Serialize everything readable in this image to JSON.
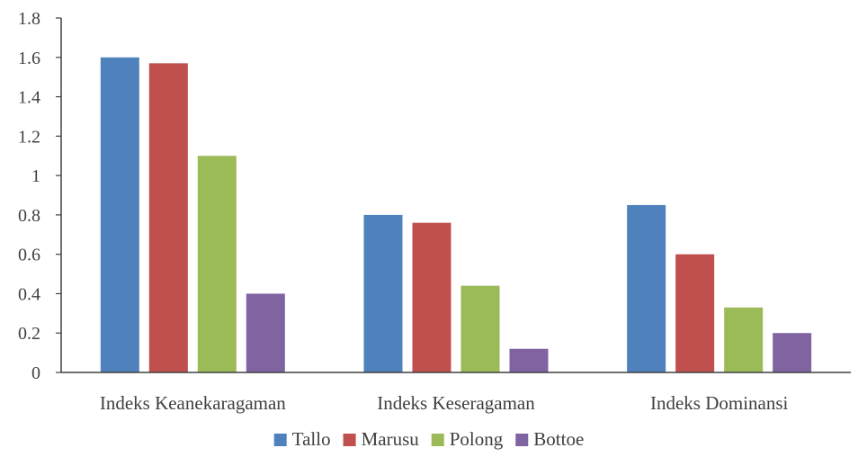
{
  "chart_data": {
    "type": "bar",
    "title": "",
    "xlabel": "",
    "ylabel": "",
    "categories": [
      "Indeks Keanekaragaman",
      "Indeks Keseragaman",
      "Indeks Dominansi"
    ],
    "series": [
      {
        "name": "Tallo",
        "color": "#4F81BD",
        "values": [
          1.6,
          0.8,
          0.85
        ]
      },
      {
        "name": "Marusu",
        "color": "#C0504D",
        "values": [
          1.57,
          0.76,
          0.6
        ]
      },
      {
        "name": "Polong",
        "color": "#9BBB59",
        "values": [
          1.1,
          0.44,
          0.33
        ]
      },
      {
        "name": "Bottoe",
        "color": "#8064A2",
        "values": [
          0.4,
          0.12,
          0.2
        ]
      }
    ],
    "ylim": [
      0,
      1.8
    ],
    "yticks": [
      "0",
      "0.2",
      "0.4",
      "0.6",
      "0.8",
      "1",
      "1.2",
      "1.4",
      "1.6",
      "1.8"
    ],
    "grid": false,
    "legend": "bottom"
  }
}
